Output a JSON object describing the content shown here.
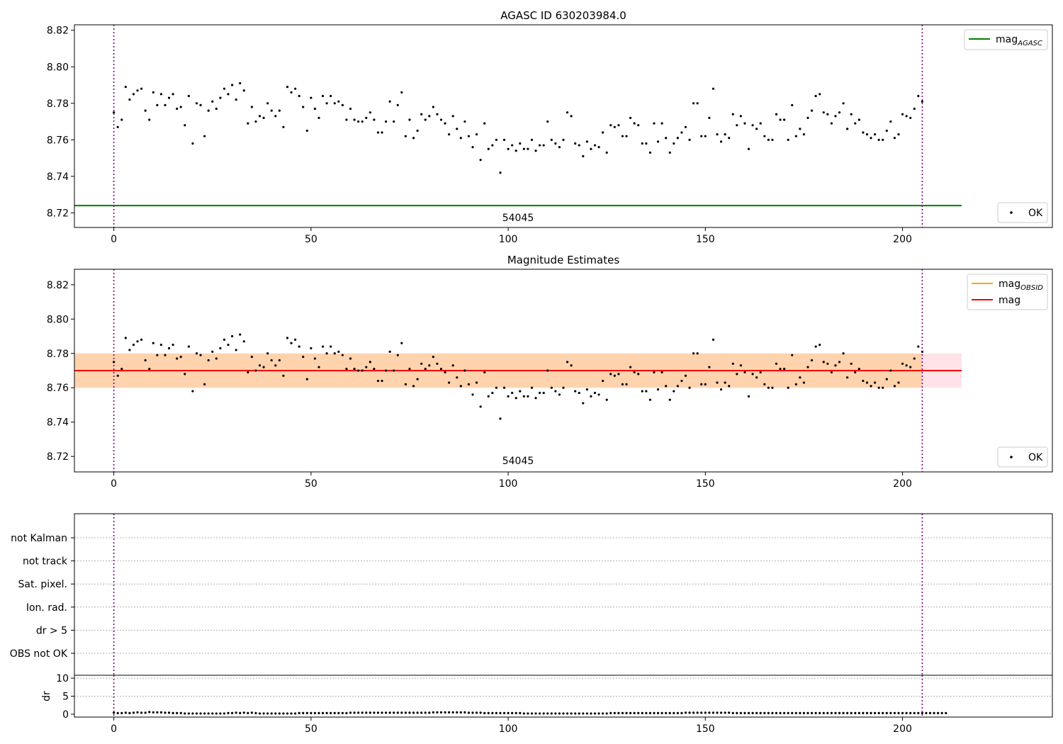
{
  "chart_data": [
    {
      "type": "scatter",
      "title": "AGASC ID 630203984.0",
      "xlim": [
        -10,
        238
      ],
      "ylim": [
        8.712,
        8.823
      ],
      "yticks": [
        8.72,
        8.74,
        8.76,
        8.78,
        8.8,
        8.82
      ],
      "ytick_labels": [
        "8.72",
        "8.74",
        "8.76",
        "8.78",
        "8.80",
        "8.82"
      ],
      "xticks": [
        0,
        50,
        100,
        150,
        200
      ],
      "xtick_labels": [
        "0",
        "50",
        "100",
        "150",
        "200"
      ],
      "vlines": [
        0,
        205
      ],
      "hlines": [
        {
          "y": 8.724,
          "x0": -10,
          "x1": 215,
          "color": "#008000"
        }
      ],
      "annotations": [
        {
          "text": "54045",
          "x": 102.5,
          "y": 8.7155
        }
      ],
      "legend": [
        {
          "label": "mag",
          "sub": "AGASC",
          "color": "#008000",
          "kind": "line",
          "position": "top-right"
        }
      ],
      "legend2": [
        {
          "label": "OK",
          "color": "#000000",
          "kind": "marker",
          "position": "bottom-right"
        }
      ],
      "grid": false
    },
    {
      "type": "scatter",
      "title": "Magnitude Estimates",
      "xlim": [
        -10,
        238
      ],
      "ylim": [
        8.711,
        8.829
      ],
      "yticks": [
        8.72,
        8.74,
        8.76,
        8.78,
        8.8,
        8.82
      ],
      "ytick_labels": [
        "8.72",
        "8.74",
        "8.76",
        "8.78",
        "8.80",
        "8.82"
      ],
      "xticks": [
        0,
        50,
        100,
        150,
        200
      ],
      "xtick_labels": [
        "0",
        "50",
        "100",
        "150",
        "200"
      ],
      "vlines": [
        0,
        205
      ],
      "bands": [
        {
          "y0": 8.76,
          "y1": 8.78,
          "x0": -10,
          "x1": 215,
          "color": "#ffc0cb",
          "opacity": 0.45
        },
        {
          "y0": 8.76,
          "y1": 8.78,
          "x0": -10,
          "x1": 205,
          "color": "#ffa500",
          "opacity": 0.25
        }
      ],
      "hlines": [
        {
          "y": 8.77,
          "x0": -10,
          "x1": 205,
          "color": "#ffa500"
        },
        {
          "y": 8.77,
          "x0": -10,
          "x1": 215,
          "color": "#ff0000"
        }
      ],
      "annotations": [
        {
          "text": "54045",
          "x": 102.5,
          "y": 8.7155
        }
      ],
      "legend": [
        {
          "label": "mag",
          "sub": "OBSID",
          "color": "#ffa500",
          "kind": "line",
          "position": "top-right"
        },
        {
          "label": "mag",
          "sub": "",
          "color": "#ff0000",
          "kind": "line",
          "position": "top-right"
        }
      ],
      "legend2": [
        {
          "label": "OK",
          "color": "#000000",
          "kind": "marker",
          "position": "bottom-right"
        }
      ],
      "grid": false
    },
    {
      "type": "scatter",
      "title": "",
      "xlim": [
        -10,
        238
      ],
      "flag_labels": [
        "not Kalman",
        "not track",
        "Sat. pixel.",
        "Ion. rad.",
        "dr > 5",
        "OBS not OK"
      ],
      "vlines": [
        0,
        205
      ],
      "flags_set": [],
      "grid": true
    },
    {
      "type": "scatter",
      "title": "",
      "ylabel": "dr",
      "xlim": [
        -10,
        238
      ],
      "ylim": [
        -0.8,
        10.8
      ],
      "yticks": [
        0,
        5,
        10
      ],
      "ytick_labels": [
        "0",
        "5",
        "10"
      ],
      "xticks": [
        0,
        50,
        100,
        150,
        200
      ],
      "xtick_labels": [
        "0",
        "50",
        "100",
        "150",
        "200"
      ],
      "vlines": [
        0,
        205
      ],
      "grid": true
    }
  ],
  "series": {
    "x_start": 0,
    "mag": [
      8.775,
      8.767,
      8.771,
      8.789,
      8.782,
      8.785,
      8.787,
      8.788,
      8.776,
      8.771,
      8.786,
      8.779,
      8.785,
      8.779,
      8.783,
      8.785,
      8.777,
      8.778,
      8.768,
      8.784,
      8.758,
      8.78,
      8.779,
      8.762,
      8.776,
      8.781,
      8.777,
      8.783,
      8.788,
      8.785,
      8.79,
      8.782,
      8.791,
      8.787,
      8.769,
      8.778,
      8.77,
      8.773,
      8.772,
      8.78,
      8.776,
      8.773,
      8.776,
      8.767,
      8.789,
      8.786,
      8.788,
      8.784,
      8.778,
      8.765,
      8.783,
      8.777,
      8.772,
      8.784,
      8.78,
      8.784,
      8.78,
      8.781,
      8.779,
      8.771,
      8.777,
      8.771,
      8.77,
      8.77,
      8.772,
      8.775,
      8.771,
      8.764,
      8.764,
      8.77,
      8.781,
      8.77,
      8.779,
      8.786,
      8.762,
      8.771,
      8.761,
      8.765,
      8.774,
      8.771,
      8.773,
      8.778,
      8.774,
      8.771,
      8.769,
      8.763,
      8.773,
      8.766,
      8.761,
      8.77,
      8.762,
      8.756,
      8.763,
      8.749,
      8.769,
      8.755,
      8.757,
      8.76,
      8.742,
      8.76,
      8.755,
      8.757,
      8.754,
      8.758,
      8.755,
      8.755,
      8.76,
      8.754,
      8.757,
      8.757,
      8.77,
      8.76,
      8.758,
      8.756,
      8.76,
      8.775,
      8.773,
      8.758,
      8.757,
      8.751,
      8.759,
      8.755,
      8.757,
      8.756,
      8.764,
      8.753,
      8.768,
      8.767,
      8.768,
      8.762,
      8.762,
      8.772,
      8.769,
      8.768,
      8.758,
      8.758,
      8.753,
      8.769,
      8.759,
      8.769,
      8.761,
      8.753,
      8.758,
      8.761,
      8.764,
      8.767,
      8.76,
      8.78,
      8.78,
      8.762,
      8.762,
      8.772,
      8.788,
      8.763,
      8.759,
      8.763,
      8.761,
      8.774,
      8.768,
      8.773,
      8.769,
      8.755,
      8.768,
      8.766,
      8.769,
      8.762,
      8.76,
      8.76,
      8.774,
      8.771,
      8.771,
      8.76,
      8.779,
      8.762,
      8.766,
      8.763,
      8.772,
      8.776,
      8.784,
      8.785,
      8.775,
      8.774,
      8.769,
      8.773,
      8.775,
      8.78,
      8.766,
      8.774,
      8.769,
      8.771,
      8.764,
      8.763,
      8.761,
      8.763,
      8.76,
      8.76,
      8.765,
      8.77,
      8.761,
      8.763,
      8.774,
      8.773,
      8.772,
      8.777,
      8.784,
      8.781
    ],
    "dr": [
      0.4,
      0.3,
      0.3,
      0.4,
      0.3,
      0.4,
      0.5,
      0.4,
      0.4,
      0.6,
      0.5,
      0.5,
      0.5,
      0.4,
      0.4,
      0.3,
      0.3,
      0.3,
      0.2,
      0.2,
      0.2,
      0.2,
      0.2,
      0.2,
      0.2,
      0.2,
      0.2,
      0.2,
      0.2,
      0.3,
      0.3,
      0.4,
      0.3,
      0.4,
      0.3,
      0.4,
      0.3,
      0.2,
      0.2,
      0.2,
      0.2,
      0.2,
      0.2,
      0.2,
      0.2,
      0.2,
      0.2,
      0.3,
      0.3,
      0.3,
      0.3,
      0.3,
      0.3,
      0.3,
      0.3,
      0.3,
      0.3,
      0.3,
      0.3,
      0.3,
      0.4,
      0.4,
      0.4,
      0.4,
      0.4,
      0.4,
      0.4,
      0.4,
      0.4,
      0.4,
      0.4,
      0.4,
      0.4,
      0.4,
      0.4,
      0.4,
      0.4,
      0.4,
      0.4,
      0.4,
      0.4,
      0.5,
      0.5,
      0.5,
      0.5,
      0.5,
      0.5,
      0.5,
      0.5,
      0.5,
      0.4,
      0.4,
      0.4,
      0.4,
      0.3,
      0.3,
      0.3,
      0.3,
      0.3,
      0.3,
      0.3,
      0.3,
      0.3,
      0.3,
      0.2,
      0.2,
      0.2,
      0.2,
      0.2,
      0.2,
      0.2,
      0.2,
      0.2,
      0.2,
      0.2,
      0.2,
      0.2,
      0.2,
      0.2,
      0.2,
      0.2,
      0.2,
      0.2,
      0.2,
      0.2,
      0.2,
      0.3,
      0.3,
      0.3,
      0.3,
      0.3,
      0.3,
      0.3,
      0.3,
      0.3,
      0.3,
      0.3,
      0.3,
      0.3,
      0.3,
      0.3,
      0.3,
      0.3,
      0.3,
      0.3,
      0.4,
      0.4,
      0.4,
      0.4,
      0.4,
      0.4,
      0.4,
      0.4,
      0.4,
      0.4,
      0.4,
      0.4,
      0.3,
      0.3,
      0.3,
      0.3,
      0.3,
      0.3,
      0.3,
      0.3,
      0.3,
      0.3,
      0.3,
      0.3,
      0.3,
      0.3,
      0.3,
      0.3,
      0.3,
      0.3,
      0.3,
      0.3,
      0.3,
      0.3,
      0.3,
      0.3,
      0.3,
      0.3,
      0.3,
      0.3,
      0.3,
      0.3,
      0.3,
      0.3,
      0.3,
      0.3,
      0.3,
      0.3,
      0.3,
      0.3,
      0.3,
      0.3,
      0.3,
      0.3,
      0.3,
      0.3,
      0.3,
      0.3,
      0.3,
      0.3,
      0.3,
      0.3,
      0.3,
      0.3,
      0.3,
      0.3,
      0.3
    ]
  }
}
